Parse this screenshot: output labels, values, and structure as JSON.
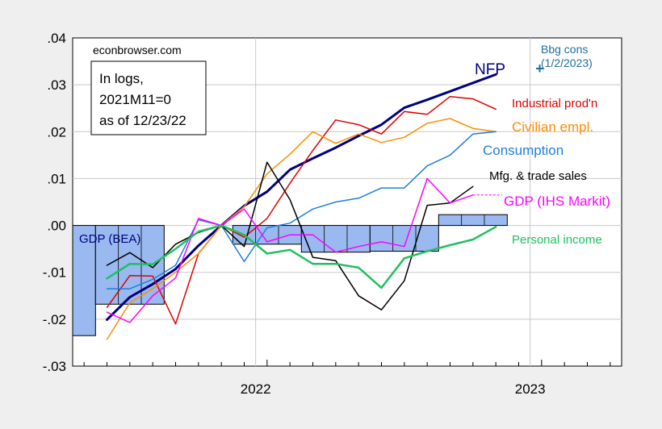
{
  "chart_data": {
    "type": "line",
    "watermark": "econbrowser.com",
    "note_lines": [
      "In logs,",
      "2021M11=0",
      "as of 12/23/22"
    ],
    "y_ticks": [
      0.04,
      0.03,
      0.02,
      0.01,
      0.0,
      -0.01,
      -0.02,
      -0.03
    ],
    "y_tick_labels": [
      ".04",
      ".03",
      ".02",
      ".01",
      ".00",
      "-.01",
      "-.02",
      "-.03"
    ],
    "ylim": [
      -0.03,
      0.04
    ],
    "xlim": [
      "2021-05",
      "2023-04"
    ],
    "x_tick_labels": [
      {
        "label": "2022",
        "date": "2022-01"
      },
      {
        "label": "2023",
        "date": "2023-01"
      }
    ],
    "grid": true,
    "bars": {
      "name": "GDP (BEA)",
      "color": "#99b9f0",
      "values": [
        {
          "start": "2021-05",
          "end": "2021-06",
          "value": -0.0235
        },
        {
          "start": "2021-06",
          "end": "2021-09",
          "value": -0.0168
        },
        {
          "start": "2021-12",
          "end": "2022-03",
          "value": -0.004
        },
        {
          "start": "2022-03",
          "end": "2022-06",
          "value": -0.0057
        },
        {
          "start": "2022-06",
          "end": "2022-09",
          "value": -0.0055
        },
        {
          "start": "2022-09",
          "end": "2022-12",
          "value": 0.0023
        }
      ]
    },
    "series": [
      {
        "name": "NFP",
        "color": "#000080",
        "width": 3,
        "x": [
          "2021-06",
          "2021-07",
          "2021-08",
          "2021-09",
          "2021-10",
          "2021-11",
          "2021-12",
          "2022-01",
          "2022-02",
          "2022-03",
          "2022-04",
          "2022-05",
          "2022-06",
          "2022-07",
          "2022-08",
          "2022-09",
          "2022-10",
          "2022-11"
        ],
        "y": [
          -0.0201,
          -0.0153,
          -0.0125,
          -0.0093,
          -0.0043,
          0.0,
          0.0042,
          0.0072,
          0.0119,
          0.0143,
          0.0166,
          0.0191,
          0.0215,
          0.0251,
          0.0268,
          0.0286,
          0.0304,
          0.0322
        ]
      },
      {
        "name": "Industrial prod'n",
        "color": "#e00000",
        "width": 1.5,
        "x": [
          "2021-06",
          "2021-07",
          "2021-08",
          "2021-09",
          "2021-10",
          "2021-11",
          "2021-12",
          "2022-01",
          "2022-02",
          "2022-03",
          "2022-04",
          "2022-05",
          "2022-06",
          "2022-07",
          "2022-08",
          "2022-09",
          "2022-10",
          "2022-11"
        ],
        "y": [
          -0.0175,
          -0.0107,
          -0.0108,
          -0.021,
          -0.006,
          0.0,
          -0.0025,
          0.0015,
          0.009,
          0.016,
          0.0225,
          0.0215,
          0.0195,
          0.0243,
          0.0237,
          0.0275,
          0.027,
          0.0248
        ]
      },
      {
        "name": "Civilian empl.",
        "color": "#ff8c00",
        "width": 1.5,
        "x": [
          "2021-06",
          "2021-07",
          "2021-08",
          "2021-09",
          "2021-10",
          "2021-11",
          "2021-12",
          "2022-01",
          "2022-02",
          "2022-03",
          "2022-04",
          "2022-05",
          "2022-06",
          "2022-07",
          "2022-08",
          "2022-09",
          "2022-10",
          "2022-11"
        ],
        "y": [
          -0.0243,
          -0.0165,
          -0.0135,
          -0.01,
          -0.006,
          0.0,
          0.004,
          0.011,
          0.0152,
          0.02,
          0.0175,
          0.0195,
          0.0177,
          0.0188,
          0.0218,
          0.0228,
          0.0207,
          0.02
        ]
      },
      {
        "name": "Consumption",
        "color": "#1f7fe0",
        "width": 1.5,
        "x": [
          "2021-06",
          "2021-07",
          "2021-08",
          "2021-09",
          "2021-10",
          "2021-11",
          "2021-12",
          "2022-01",
          "2022-02",
          "2022-03",
          "2022-04",
          "2022-05",
          "2022-06",
          "2022-07",
          "2022-08",
          "2022-09",
          "2022-10",
          "2022-11"
        ],
        "y": [
          -0.0135,
          -0.0135,
          -0.0115,
          -0.0085,
          0.0012,
          0.0,
          -0.0077,
          -0.0005,
          0.0005,
          0.0035,
          0.005,
          0.0058,
          0.008,
          0.008,
          0.0127,
          0.015,
          0.0195,
          0.02
        ]
      },
      {
        "name": "Mfg. & trade sales",
        "color": "#000000",
        "width": 1.5,
        "x": [
          "2021-06",
          "2021-07",
          "2021-08",
          "2021-09",
          "2021-10",
          "2021-11",
          "2021-12",
          "2022-01",
          "2022-02",
          "2022-03",
          "2022-04",
          "2022-05",
          "2022-06",
          "2022-07",
          "2022-08",
          "2022-09",
          "2022-10"
        ],
        "y": [
          -0.0085,
          -0.0058,
          -0.009,
          -0.004,
          -0.0015,
          0.0,
          -0.0045,
          0.0135,
          0.0055,
          -0.0068,
          -0.0075,
          -0.015,
          -0.018,
          -0.0118,
          0.0043,
          0.0048,
          0.0083
        ]
      },
      {
        "name": "GDP (IHS Markit)",
        "color": "#ff00ff",
        "width": 1.5,
        "x": [
          "2021-06",
          "2021-07",
          "2021-08",
          "2021-09",
          "2021-10",
          "2021-11",
          "2021-12",
          "2022-01",
          "2022-02",
          "2022-03",
          "2022-04",
          "2022-05",
          "2022-06",
          "2022-07",
          "2022-08",
          "2022-09",
          "2022-10"
        ],
        "y": [
          -0.0185,
          -0.0207,
          -0.015,
          -0.0112,
          0.0015,
          0.0,
          0.0035,
          -0.0035,
          -0.002,
          -0.002,
          -0.0057,
          -0.0045,
          -0.0035,
          -0.0045,
          0.01,
          0.0048,
          0.0065
        ]
      },
      {
        "name": "Personal income",
        "color": "#20c060",
        "width": 2.5,
        "x": [
          "2021-06",
          "2021-07",
          "2021-08",
          "2021-09",
          "2021-10",
          "2021-11",
          "2021-12",
          "2022-01",
          "2022-02",
          "2022-03",
          "2022-04",
          "2022-05",
          "2022-06",
          "2022-07",
          "2022-08",
          "2022-09",
          "2022-10",
          "2022-11"
        ],
        "y": [
          -0.0113,
          -0.0082,
          -0.0083,
          -0.005,
          -0.0013,
          0.0,
          -0.002,
          -0.006,
          -0.0052,
          -0.0082,
          -0.0082,
          -0.009,
          -0.0133,
          -0.007,
          -0.0055,
          -0.0042,
          -0.003,
          -0.0003
        ]
      }
    ],
    "labels": [
      {
        "text": "NFP",
        "color": "#000080"
      },
      {
        "text": "Industrial prod'n",
        "color": "#e00000"
      },
      {
        "text": "Civilian empl.",
        "color": "#ff8c00"
      },
      {
        "text": "Consumption",
        "color": "#1f7fe0"
      },
      {
        "text": "Mfg. & trade sales",
        "color": "#000000"
      },
      {
        "text": "GDP (IHS Markit)",
        "color": "#ff00ff"
      },
      {
        "text": "Personal income",
        "color": "#20c060"
      },
      {
        "text": "GDP (BEA)",
        "color": "#000080"
      }
    ],
    "bbg_cons": {
      "label_lines": [
        "Bbg cons",
        "(1/2/2023)"
      ],
      "marker": "+",
      "date": "2022-12",
      "value": 0.0335,
      "color": "#1e6fa0"
    }
  }
}
